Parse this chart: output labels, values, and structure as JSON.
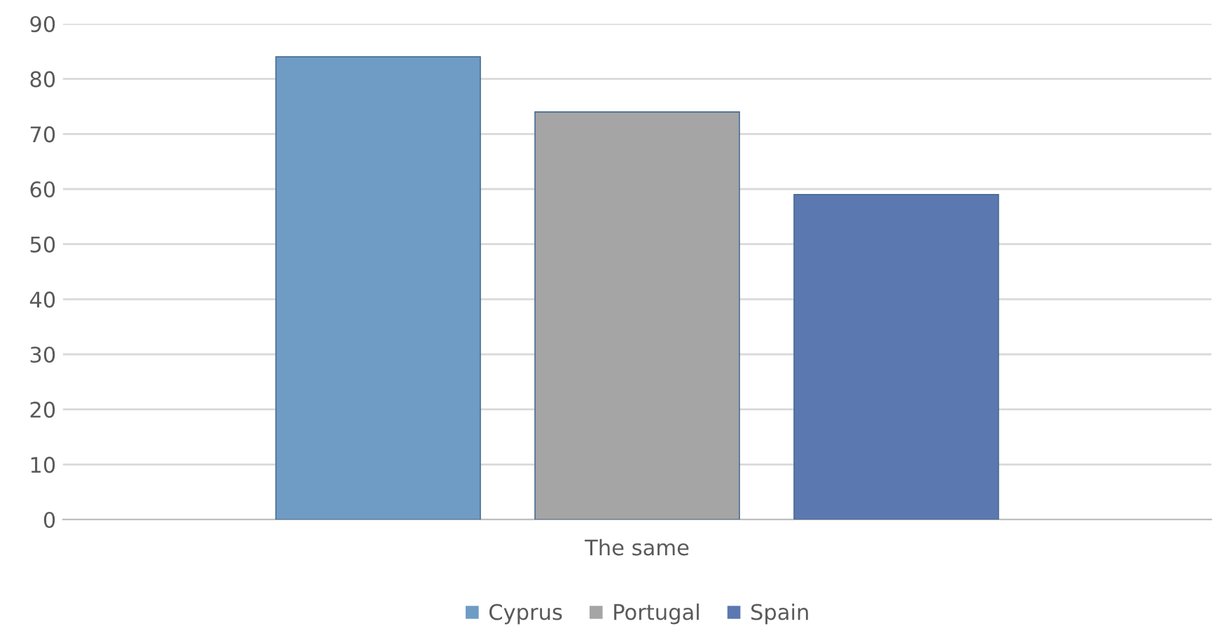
{
  "chart_data": {
    "type": "bar",
    "categories": [
      "The same"
    ],
    "series": [
      {
        "name": "Cyprus",
        "color": "#6f9cc4",
        "values": [
          84
        ]
      },
      {
        "name": "Portugal",
        "color": "#a5a5a5",
        "values": [
          74
        ]
      },
      {
        "name": "Spain",
        "color": "#5b78b0",
        "values": [
          59
        ]
      }
    ],
    "ylim": [
      0,
      90
    ],
    "yticks": [
      0,
      10,
      20,
      30,
      40,
      50,
      60,
      70,
      80,
      90
    ],
    "grid": "y",
    "legend": "bottom"
  }
}
